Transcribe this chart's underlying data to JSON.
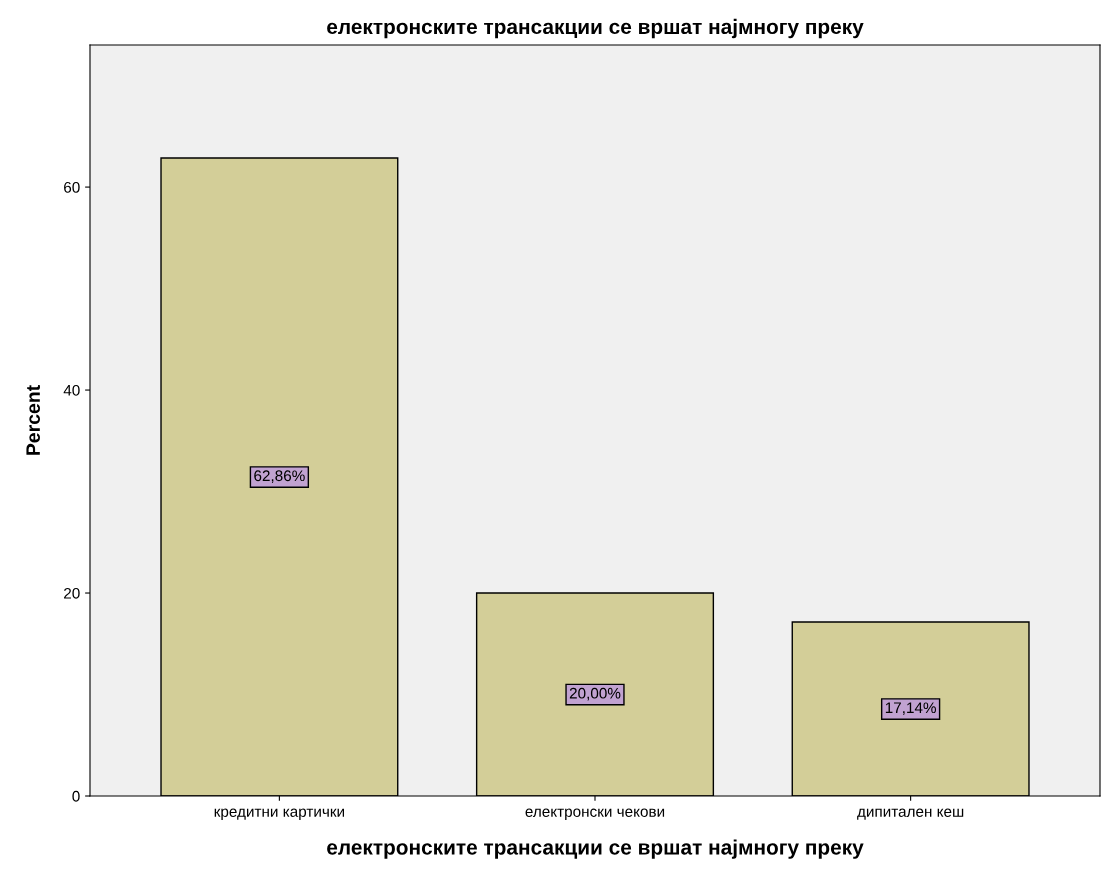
{
  "chart_data": {
    "type": "bar",
    "title": "електронските трансакции се вршат најмногу преку",
    "xlabel": "електронските трансакции се вршат најмногу преку",
    "ylabel": "Percent",
    "categories": [
      "кредитни картички",
      "електронски чекови",
      "дипитален кеш"
    ],
    "values": [
      62.86,
      20.0,
      17.14
    ],
    "value_labels": [
      "62,86%",
      "20,00%",
      "17,14%"
    ],
    "color": "#d3ce98",
    "ylim": [
      0,
      74
    ],
    "yticks": [
      0,
      20,
      40,
      60
    ],
    "grid": false,
    "legend": false
  }
}
